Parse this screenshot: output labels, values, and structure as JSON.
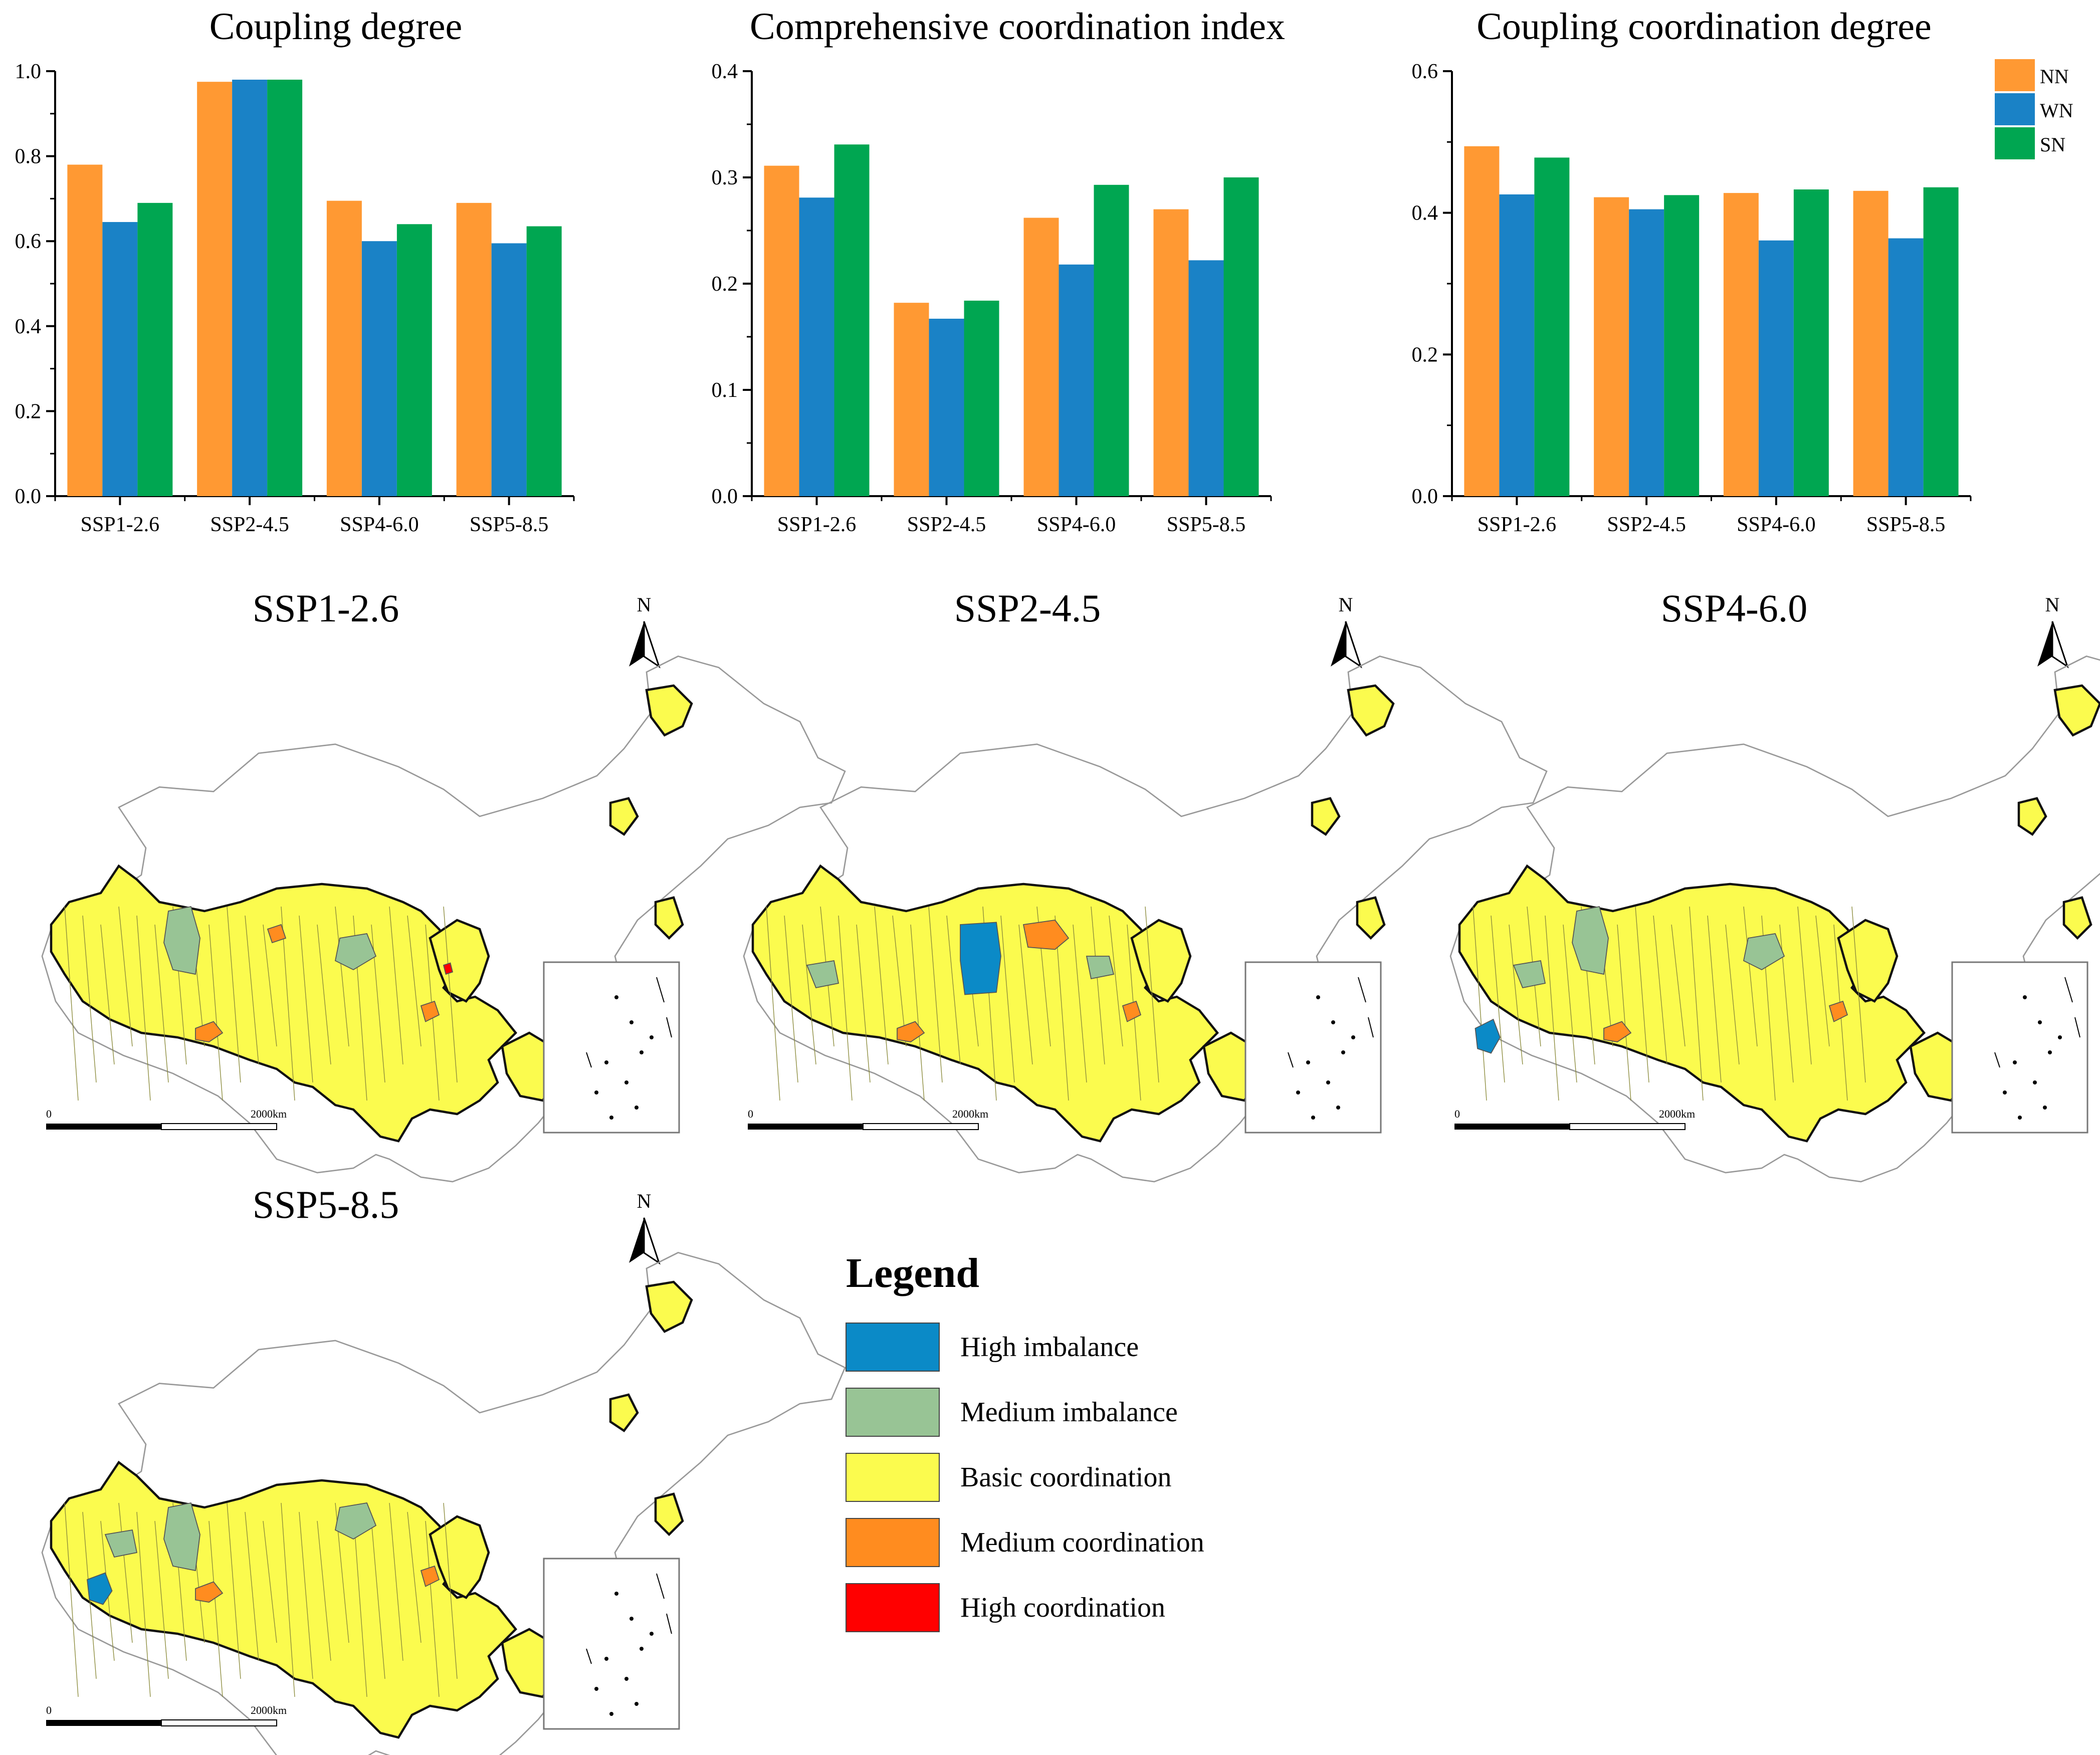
{
  "colors": {
    "NN": "#FF9933",
    "WN": "#1A82C6",
    "SN": "#00A651",
    "high_imbalance": "#0B8AC7",
    "medium_imbalance": "#98C495",
    "basic_coordination": "#FBFB4E",
    "medium_coordination": "#FF8C1F",
    "high_coordination": "#FF0000"
  },
  "chart_data": [
    {
      "type": "bar",
      "title": "Coupling degree",
      "categories": [
        "SSP1-2.6",
        "SSP2-4.5",
        "SSP4-6.0",
        "SSP5-8.5"
      ],
      "ylim": [
        0,
        1.0
      ],
      "yticks": [
        "0.0",
        "0.2",
        "0.4",
        "0.6",
        "0.8",
        "1.0"
      ],
      "series": [
        {
          "name": "NN",
          "values": [
            0.78,
            0.975,
            0.695,
            0.69
          ]
        },
        {
          "name": "WN",
          "values": [
            0.645,
            0.98,
            0.6,
            0.595
          ]
        },
        {
          "name": "SN",
          "values": [
            0.69,
            0.98,
            0.64,
            0.635
          ]
        }
      ]
    },
    {
      "type": "bar",
      "title": "Comprehensive coordination index",
      "categories": [
        "SSP1-2.6",
        "SSP2-4.5",
        "SSP4-6.0",
        "SSP5-8.5"
      ],
      "ylim": [
        0,
        0.4
      ],
      "yticks": [
        "0.0",
        "0.1",
        "0.2",
        "0.3",
        "0.4"
      ],
      "series": [
        {
          "name": "NN",
          "values": [
            0.311,
            0.182,
            0.262,
            0.27
          ]
        },
        {
          "name": "WN",
          "values": [
            0.281,
            0.167,
            0.218,
            0.222
          ]
        },
        {
          "name": "SN",
          "values": [
            0.331,
            0.184,
            0.293,
            0.3
          ]
        }
      ]
    },
    {
      "type": "bar",
      "title": "Coupling coordination degree",
      "categories": [
        "SSP1-2.6",
        "SSP2-4.5",
        "SSP4-6.0",
        "SSP5-8.5"
      ],
      "ylim": [
        0,
        0.6
      ],
      "yticks": [
        "0.0",
        "0.2",
        "0.4",
        "0.6"
      ],
      "legend": "top-right",
      "series": [
        {
          "name": "NN",
          "values": [
            0.494,
            0.422,
            0.428,
            0.431
          ]
        },
        {
          "name": "WN",
          "values": [
            0.426,
            0.405,
            0.361,
            0.364
          ]
        },
        {
          "name": "SN",
          "values": [
            0.478,
            0.425,
            0.433,
            0.436
          ]
        }
      ]
    }
  ],
  "maps": [
    {
      "title": "SSP1-2.6",
      "north": "N",
      "scale_start": "0",
      "scale_end": "2000km"
    },
    {
      "title": "SSP2-4.5",
      "north": "N",
      "scale_start": "0",
      "scale_end": "2000km"
    },
    {
      "title": "SSP4-6.0",
      "north": "N",
      "scale_start": "0",
      "scale_end": "2000km"
    },
    {
      "title": "SSP5-8.5",
      "north": "N",
      "scale_start": "0",
      "scale_end": "2000km"
    }
  ],
  "map_legend": {
    "title": "Legend",
    "items": [
      {
        "label": "High imbalance",
        "color": "#0B8AC7"
      },
      {
        "label": "Medium imbalance",
        "color": "#98C495"
      },
      {
        "label": "Basic coordination",
        "color": "#FBFB4E"
      },
      {
        "label": "Medium coordination",
        "color": "#FF8C1F"
      },
      {
        "label": "High coordination",
        "color": "#FF0000"
      }
    ]
  }
}
